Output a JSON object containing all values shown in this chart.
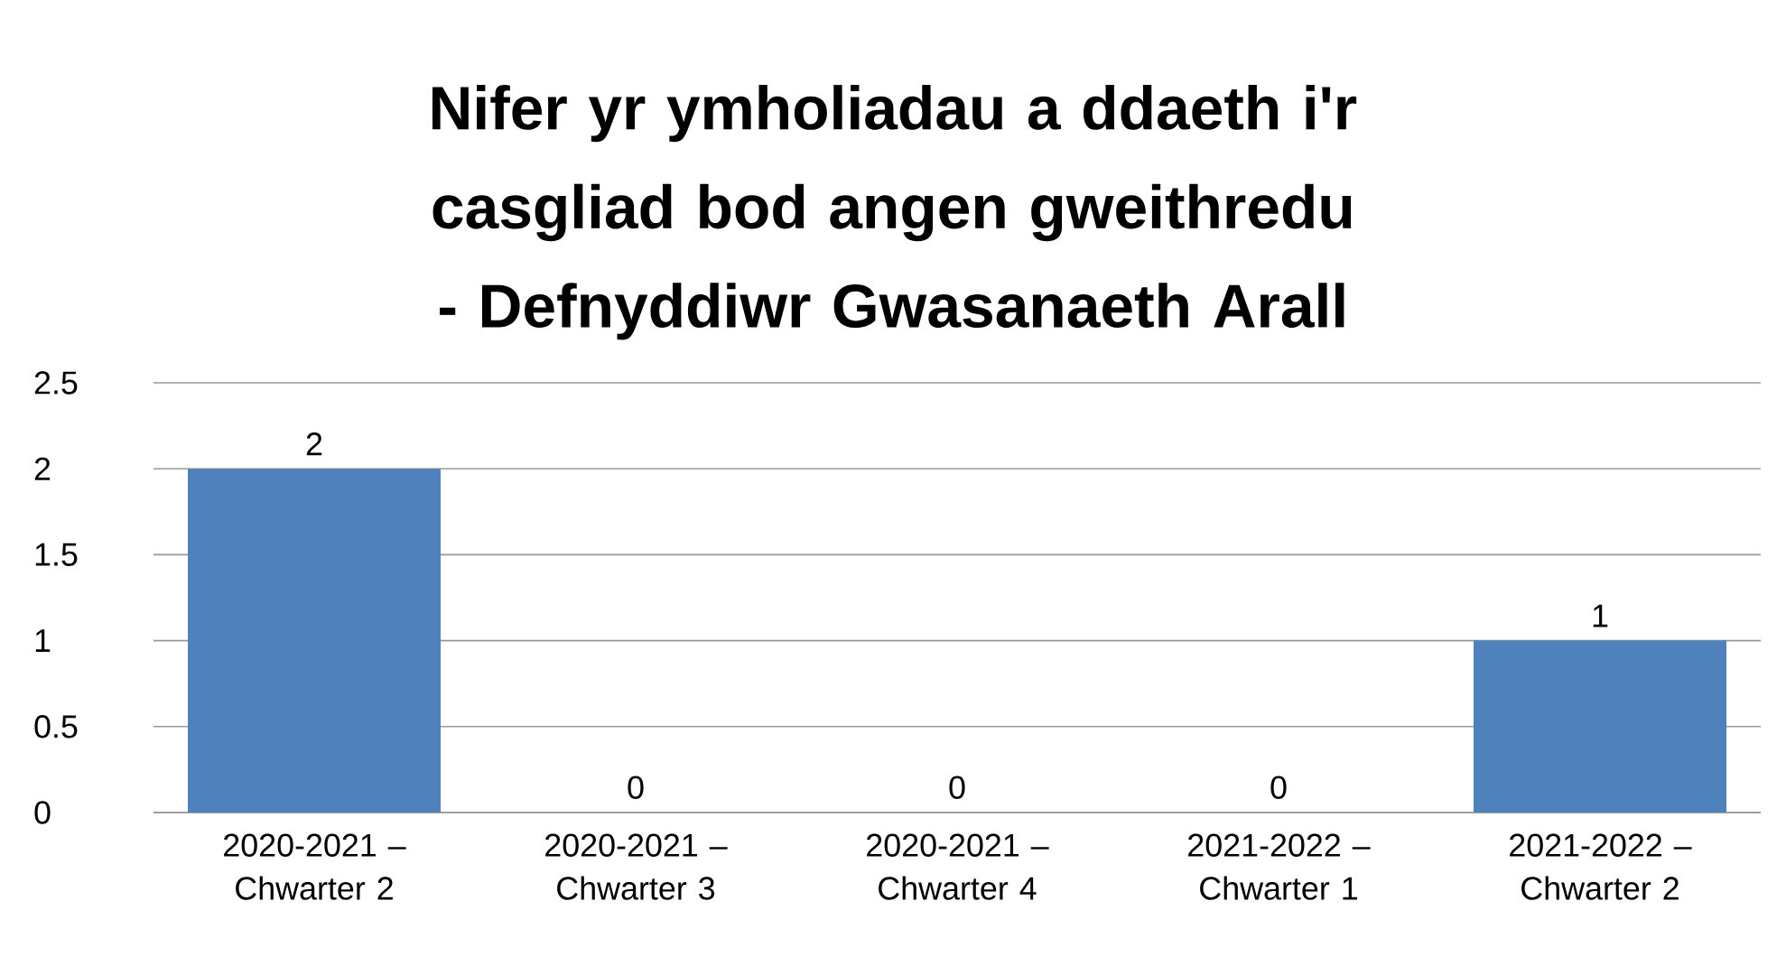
{
  "chart_data": {
    "type": "bar",
    "title": "Nifer yr ymholiadau a ddaeth i'r casgliad bod angen gweithredu - Defnyddiwr Gwasanaeth Arall",
    "categories": [
      "2020-2021 – Chwarter 2",
      "2020-2021 – Chwarter 3",
      "2020-2021 – Chwarter 4",
      "2021-2022 – Chwarter 1",
      "2021-2022 – Chwarter 2"
    ],
    "values": [
      2,
      0,
      0,
      0,
      1
    ],
    "color": "#4f81bd",
    "ylim": [
      0,
      2.5
    ],
    "yticks": [
      0,
      0.5,
      1,
      1.5,
      2,
      2.5
    ],
    "grid": "y",
    "data_labels": true
  }
}
